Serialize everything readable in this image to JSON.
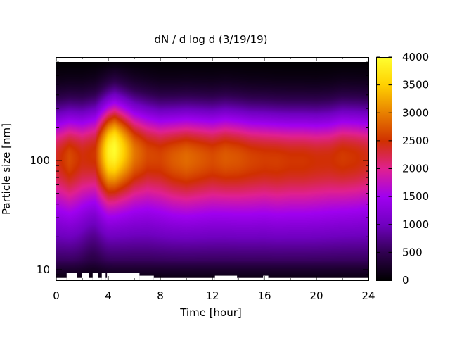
{
  "chart_data": {
    "type": "heatmap",
    "title": "dN / d log d (3/19/19)",
    "xlabel": "Time [hour]",
    "ylabel": "Particle size [nm]",
    "xlim": [
      0,
      24
    ],
    "x_ticks": [
      "0",
      "4",
      "8",
      "12",
      "16",
      "20",
      "24"
    ],
    "x_tick_values": [
      0,
      4,
      8,
      12,
      16,
      20,
      24
    ],
    "ylim": [
      8,
      890
    ],
    "y_scale": "log",
    "y_ticks": [
      "10",
      "100"
    ],
    "y_tick_values": [
      10,
      100
    ],
    "colorbar": {
      "range": [
        0,
        4000
      ],
      "ticks": [
        "0",
        "500",
        "1000",
        "1500",
        "2000",
        "2500",
        "3000",
        "3500",
        "4000"
      ],
      "tick_values": [
        0,
        500,
        1000,
        1500,
        2000,
        2500,
        3000,
        3500,
        4000
      ],
      "palette": [
        "#000000",
        "#300050",
        "#7000c0",
        "#a000f0",
        "#e02090",
        "#d03000",
        "#e88000",
        "#ffd000",
        "#ffff30"
      ]
    },
    "mode_center_nm": [
      [
        0,
        110
      ],
      [
        1,
        110
      ],
      [
        2,
        112
      ],
      [
        3,
        118
      ],
      [
        4,
        125
      ],
      [
        4.5,
        130
      ],
      [
        5,
        128
      ],
      [
        6,
        122
      ],
      [
        7,
        118
      ],
      [
        8,
        112
      ],
      [
        9,
        110
      ],
      [
        10,
        110
      ],
      [
        11,
        110
      ],
      [
        12,
        110
      ],
      [
        13,
        112
      ],
      [
        14,
        110
      ],
      [
        15,
        108
      ],
      [
        16,
        108
      ],
      [
        17,
        106
      ],
      [
        18,
        106
      ],
      [
        19,
        106
      ],
      [
        20,
        106
      ],
      [
        21,
        108
      ],
      [
        22,
        112
      ],
      [
        23,
        112
      ],
      [
        24,
        112
      ]
    ],
    "peak_concentration": [
      [
        0,
        2300
      ],
      [
        1,
        2600
      ],
      [
        2,
        2400
      ],
      [
        3,
        2500
      ],
      [
        4,
        3800
      ],
      [
        4.5,
        3950
      ],
      [
        5,
        3600
      ],
      [
        6,
        2900
      ],
      [
        7,
        2600
      ],
      [
        8,
        2550
      ],
      [
        9,
        2700
      ],
      [
        10,
        2800
      ],
      [
        11,
        2700
      ],
      [
        12,
        2600
      ],
      [
        13,
        2700
      ],
      [
        14,
        2650
      ],
      [
        15,
        2550
      ],
      [
        16,
        2500
      ],
      [
        17,
        2500
      ],
      [
        18,
        2450
      ],
      [
        19,
        2450
      ],
      [
        20,
        2400
      ],
      [
        21,
        2400
      ],
      [
        22,
        2500
      ],
      [
        23,
        2450
      ],
      [
        24,
        2350
      ]
    ],
    "no_data_regions": [
      {
        "x": [
          0,
          0.8
        ],
        "y_upper_nm": 8.4
      },
      {
        "x": [
          0.8,
          1.6
        ],
        "y_upper_nm": 9.4
      },
      {
        "x": [
          1.6,
          2.0
        ],
        "y_upper_nm": 8.4
      },
      {
        "x": [
          2.0,
          2.5
        ],
        "y_upper_nm": 9.4
      },
      {
        "x": [
          2.5,
          2.8
        ],
        "y_upper_nm": 8.4
      },
      {
        "x": [
          2.8,
          3.2
        ],
        "y_upper_nm": 9.4
      },
      {
        "x": [
          3.2,
          3.5
        ],
        "y_upper_nm": 8.4
      },
      {
        "x": [
          3.5,
          3.8
        ],
        "y_upper_nm": 9.4
      },
      {
        "x": [
          3.8,
          3.9
        ],
        "y_upper_nm": 8.4
      },
      {
        "x": [
          3.9,
          6.4
        ],
        "y_upper_nm": 9.4
      },
      {
        "x": [
          6.4,
          7.5
        ],
        "y_upper_nm": 8.8
      },
      {
        "x": [
          7.5,
          12.2
        ],
        "y_upper_nm": 8.4
      },
      {
        "x": [
          12.2,
          13.9
        ],
        "y_upper_nm": 8.8
      },
      {
        "x": [
          13.9,
          15.9
        ],
        "y_upper_nm": 8.4
      },
      {
        "x": [
          15.9,
          16.3
        ],
        "y_upper_nm": 8.8
      },
      {
        "x": [
          16.3,
          24
        ],
        "y_upper_nm": 8.4
      }
    ]
  }
}
